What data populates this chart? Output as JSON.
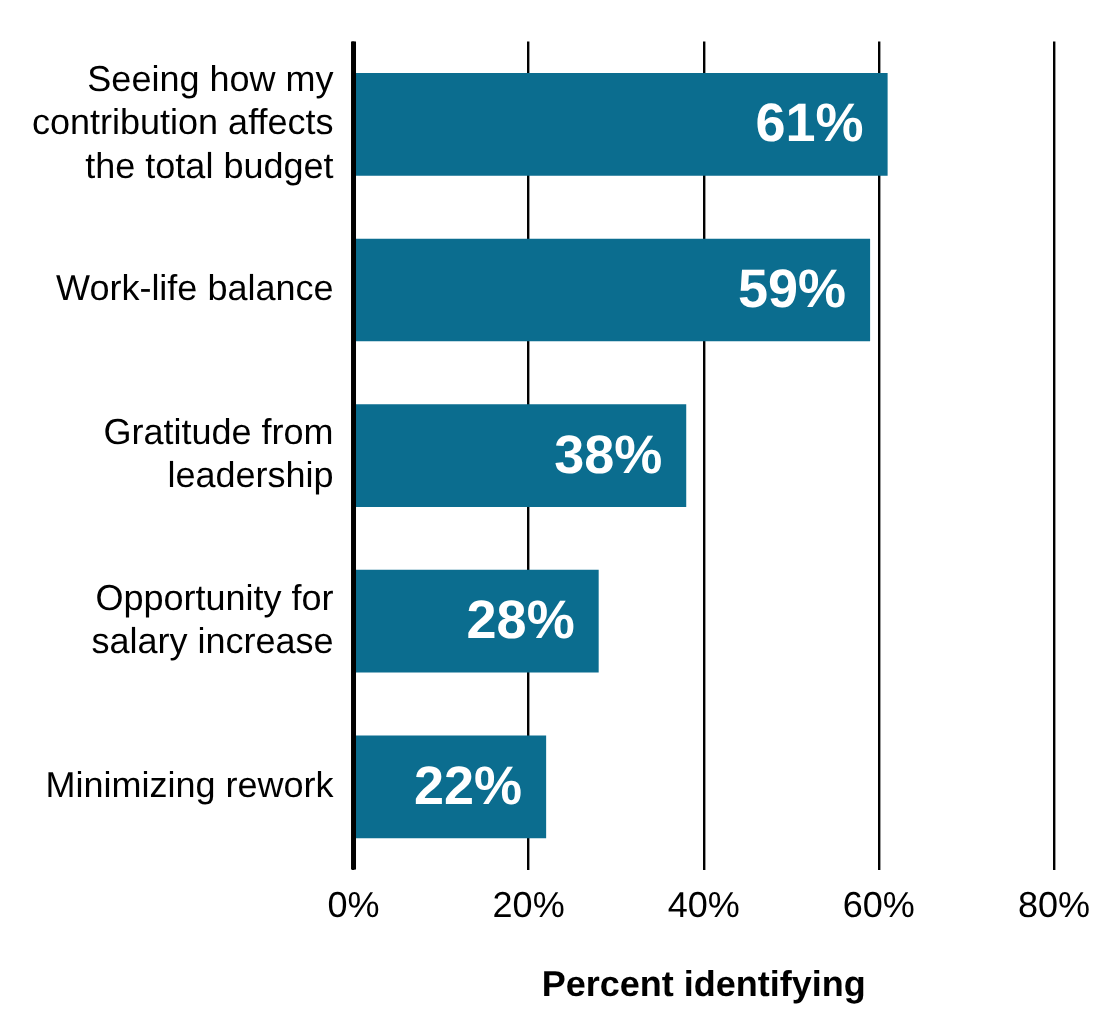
{
  "chart_data": {
    "type": "bar",
    "orientation": "horizontal",
    "xlabel": "Percent identifying",
    "categories": [
      "Seeing how my contribution affects the total budget",
      "Work-life balance",
      "Gratitude from leadership",
      "Opportunity for salary increase",
      "Minimizing rework"
    ],
    "values": [
      61,
      59,
      38,
      28,
      22
    ],
    "value_labels": [
      "61%",
      "59%",
      "38%",
      "28%",
      "22%"
    ],
    "color": "#0b6d8f",
    "xlim": [
      0,
      80
    ],
    "xticks": [
      {
        "value": 0,
        "label": "0%"
      },
      {
        "value": 20,
        "label": "20%"
      },
      {
        "value": 40,
        "label": "40%"
      },
      {
        "value": 60,
        "label": "60%"
      },
      {
        "value": 80,
        "label": "80%"
      }
    ],
    "grid": "x",
    "legend": false
  }
}
